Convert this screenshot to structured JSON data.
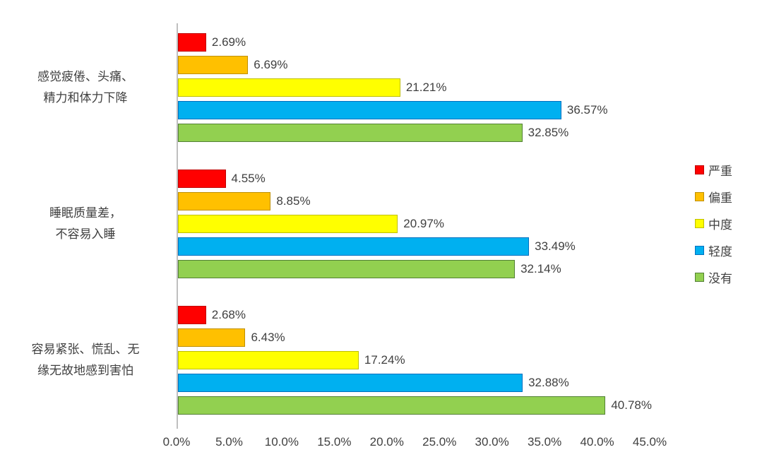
{
  "chart_data": {
    "type": "bar",
    "orientation": "horizontal",
    "title": "",
    "xlabel": "",
    "ylabel": "",
    "grid": false,
    "legend_position": "right",
    "xlim": [
      0,
      45
    ],
    "x_ticks": [
      "0.0%",
      "5.0%",
      "10.0%",
      "15.0%",
      "20.0%",
      "25.0%",
      "30.0%",
      "35.0%",
      "40.0%",
      "45.0%"
    ],
    "value_suffix": "%",
    "axis_color": "#bfbfbf",
    "text_color": "#404040",
    "categories": [
      {
        "lines": [
          "感觉疲倦、头痛、",
          "精力和体力下降"
        ]
      },
      {
        "lines": [
          "睡眠质量差，",
          "不容易入睡"
        ]
      },
      {
        "lines": [
          "容易紧张、慌乱、无",
          "缘无故地感到害怕"
        ]
      }
    ],
    "series": [
      {
        "name": "严重",
        "color": "#ff0000",
        "border": "#c00000",
        "values": [
          2.69,
          4.55,
          2.68
        ]
      },
      {
        "name": "偏重",
        "color": "#ffc000",
        "border": "#bf8f00",
        "values": [
          6.69,
          8.85,
          6.43
        ]
      },
      {
        "name": "中度",
        "color": "#ffff00",
        "border": "#bfbf00",
        "values": [
          21.21,
          20.97,
          17.24
        ]
      },
      {
        "name": "轻度",
        "color": "#00b0f0",
        "border": "#0070c0",
        "values": [
          36.57,
          33.49,
          32.88
        ]
      },
      {
        "name": "没有",
        "color": "#92d050",
        "border": "#538135",
        "values": [
          32.85,
          32.14,
          40.78
        ]
      }
    ]
  }
}
